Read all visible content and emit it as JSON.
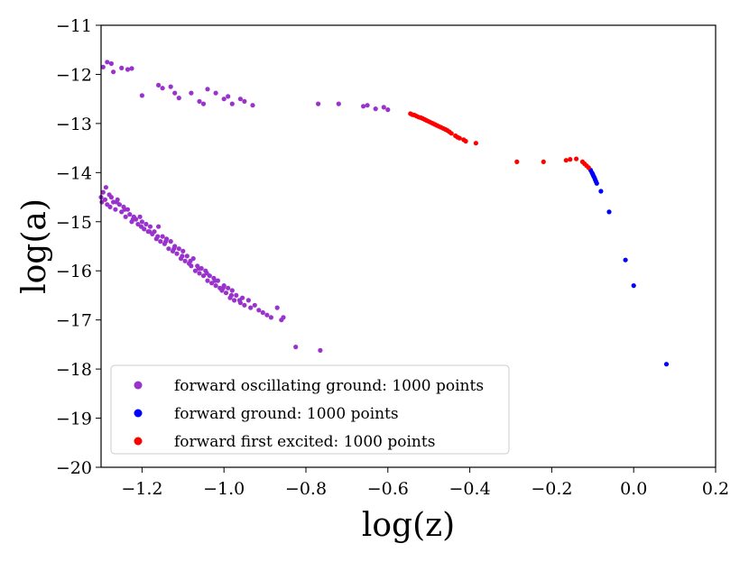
{
  "chart_data": {
    "type": "scatter",
    "xlabel": "log(z)",
    "ylabel": "log(a)",
    "xlim": [
      -1.3,
      0.2
    ],
    "ylim": [
      -20,
      -11
    ],
    "x_ticks": [
      -1.2,
      -1.0,
      -0.8,
      -0.6,
      -0.4,
      -0.2,
      0.0,
      0.2
    ],
    "y_ticks": [
      -20,
      -19,
      -18,
      -17,
      -16,
      -15,
      -14,
      -13,
      -12,
      -11
    ],
    "x_tick_labels": [
      "−1.2",
      "−1.0",
      "−0.8",
      "−0.6",
      "−0.4",
      "−0.2",
      "0.0",
      "0.2"
    ],
    "y_tick_labels": [
      "−20",
      "−19",
      "−18",
      "−17",
      "−16",
      "−15",
      "−14",
      "−13",
      "−12",
      "−11"
    ],
    "grid": false,
    "legend_position": "lower-left",
    "series": [
      {
        "name": "forward oscillating ground: 1000 points",
        "color": "#9933cc",
        "points": [
          [
            -1.295,
            -11.85
          ],
          [
            -1.285,
            -11.75
          ],
          [
            -1.275,
            -11.78
          ],
          [
            -1.27,
            -11.95
          ],
          [
            -1.25,
            -11.87
          ],
          [
            -1.235,
            -11.9
          ],
          [
            -1.225,
            -11.88
          ],
          [
            -1.2,
            -12.43
          ],
          [
            -1.16,
            -12.22
          ],
          [
            -1.15,
            -12.28
          ],
          [
            -1.13,
            -12.25
          ],
          [
            -1.12,
            -12.38
          ],
          [
            -1.11,
            -12.48
          ],
          [
            -1.08,
            -12.38
          ],
          [
            -1.06,
            -12.55
          ],
          [
            -1.05,
            -12.6
          ],
          [
            -1.04,
            -12.3
          ],
          [
            -1.02,
            -12.38
          ],
          [
            -1.0,
            -12.5
          ],
          [
            -0.99,
            -12.45
          ],
          [
            -0.98,
            -12.6
          ],
          [
            -0.96,
            -12.5
          ],
          [
            -0.95,
            -12.55
          ],
          [
            -0.93,
            -12.63
          ],
          [
            -0.77,
            -12.6
          ],
          [
            -0.72,
            -12.6
          ],
          [
            -0.66,
            -12.65
          ],
          [
            -0.65,
            -12.63
          ],
          [
            -0.63,
            -12.7
          ],
          [
            -0.61,
            -12.67
          ],
          [
            -0.6,
            -12.72
          ],
          [
            -1.3,
            -14.5
          ],
          [
            -1.298,
            -14.6
          ],
          [
            -1.295,
            -14.4
          ],
          [
            -1.29,
            -14.55
          ],
          [
            -1.288,
            -14.3
          ],
          [
            -1.285,
            -14.65
          ],
          [
            -1.28,
            -14.45
          ],
          [
            -1.278,
            -14.7
          ],
          [
            -1.275,
            -14.5
          ],
          [
            -1.27,
            -14.6
          ],
          [
            -1.265,
            -14.75
          ],
          [
            -1.26,
            -14.55
          ],
          [
            -1.255,
            -14.65
          ],
          [
            -1.25,
            -14.8
          ],
          [
            -1.245,
            -14.7
          ],
          [
            -1.24,
            -14.9
          ],
          [
            -1.235,
            -14.75
          ],
          [
            -1.23,
            -14.85
          ],
          [
            -1.225,
            -15.0
          ],
          [
            -1.22,
            -14.9
          ],
          [
            -1.215,
            -14.95
          ],
          [
            -1.21,
            -15.05
          ],
          [
            -1.205,
            -14.9
          ],
          [
            -1.2,
            -15.0
          ],
          [
            -1.195,
            -15.15
          ],
          [
            -1.19,
            -15.05
          ],
          [
            -1.185,
            -15.2
          ],
          [
            -1.18,
            -15.1
          ],
          [
            -1.175,
            -15.25
          ],
          [
            -1.17,
            -15.2
          ],
          [
            -1.165,
            -15.35
          ],
          [
            -1.16,
            -15.1
          ],
          [
            -1.155,
            -15.4
          ],
          [
            -1.15,
            -15.3
          ],
          [
            -1.145,
            -15.45
          ],
          [
            -1.14,
            -15.35
          ],
          [
            -1.135,
            -15.55
          ],
          [
            -1.13,
            -15.4
          ],
          [
            -1.125,
            -15.6
          ],
          [
            -1.12,
            -15.5
          ],
          [
            -1.115,
            -15.65
          ],
          [
            -1.11,
            -15.55
          ],
          [
            -1.105,
            -15.75
          ],
          [
            -1.1,
            -15.6
          ],
          [
            -1.095,
            -15.8
          ],
          [
            -1.09,
            -15.7
          ],
          [
            -1.085,
            -15.85
          ],
          [
            -1.08,
            -15.9
          ],
          [
            -1.075,
            -15.75
          ],
          [
            -1.07,
            -16.0
          ],
          [
            -1.065,
            -15.9
          ],
          [
            -1.06,
            -16.05
          ],
          [
            -1.055,
            -15.95
          ],
          [
            -1.05,
            -16.1
          ],
          [
            -1.045,
            -16.0
          ],
          [
            -1.04,
            -16.2
          ],
          [
            -1.035,
            -16.1
          ],
          [
            -1.03,
            -16.25
          ],
          [
            -1.025,
            -16.15
          ],
          [
            -1.02,
            -16.3
          ],
          [
            -1.015,
            -16.2
          ],
          [
            -1.01,
            -16.35
          ],
          [
            -1.005,
            -16.4
          ],
          [
            -1.0,
            -16.3
          ],
          [
            -0.995,
            -16.45
          ],
          [
            -0.99,
            -16.35
          ],
          [
            -0.985,
            -16.55
          ],
          [
            -0.98,
            -16.4
          ],
          [
            -0.975,
            -16.6
          ],
          [
            -0.97,
            -16.5
          ],
          [
            -0.96,
            -16.65
          ],
          [
            -0.955,
            -16.55
          ],
          [
            -0.95,
            -16.7
          ],
          [
            -0.94,
            -16.6
          ],
          [
            -0.935,
            -16.75
          ],
          [
            -0.925,
            -16.7
          ],
          [
            -0.915,
            -16.8
          ],
          [
            -0.905,
            -16.85
          ],
          [
            -0.895,
            -16.9
          ],
          [
            -0.885,
            -16.95
          ],
          [
            -0.87,
            -16.75
          ],
          [
            -0.86,
            -17.0
          ],
          [
            -0.855,
            -16.95
          ],
          [
            -0.825,
            -17.55
          ],
          [
            -0.765,
            -17.62
          ],
          [
            -1.262,
            -14.6
          ],
          [
            -1.242,
            -14.75
          ],
          [
            -1.222,
            -14.95
          ],
          [
            -1.202,
            -15.1
          ],
          [
            -1.182,
            -15.2
          ],
          [
            -1.162,
            -15.3
          ],
          [
            -1.142,
            -15.4
          ],
          [
            -1.122,
            -15.55
          ],
          [
            -1.102,
            -15.7
          ],
          [
            -1.082,
            -15.8
          ],
          [
            -1.062,
            -15.95
          ],
          [
            -1.042,
            -16.05
          ],
          [
            -1.022,
            -16.2
          ],
          [
            -1.002,
            -16.35
          ],
          [
            -0.982,
            -16.5
          ],
          [
            -0.962,
            -16.6
          ]
        ]
      },
      {
        "name": "forward ground: 1000 points",
        "color": "#0000ff",
        "points": [
          [
            -0.105,
            -13.95
          ],
          [
            -0.102,
            -14.0
          ],
          [
            -0.1,
            -14.03
          ],
          [
            -0.098,
            -14.07
          ],
          [
            -0.096,
            -14.1
          ],
          [
            -0.094,
            -14.14
          ],
          [
            -0.092,
            -14.18
          ],
          [
            -0.09,
            -14.22
          ],
          [
            -0.08,
            -14.38
          ],
          [
            -0.06,
            -14.8
          ],
          [
            -0.02,
            -15.78
          ],
          [
            0.0,
            -16.3
          ],
          [
            0.08,
            -17.9
          ]
        ]
      },
      {
        "name": "forward first excited: 1000 points",
        "color": "#ff0000",
        "points": [
          [
            -0.545,
            -12.8
          ],
          [
            -0.54,
            -12.82
          ],
          [
            -0.535,
            -12.83
          ],
          [
            -0.53,
            -12.85
          ],
          [
            -0.525,
            -12.87
          ],
          [
            -0.52,
            -12.88
          ],
          [
            -0.515,
            -12.9
          ],
          [
            -0.51,
            -12.92
          ],
          [
            -0.505,
            -12.94
          ],
          [
            -0.5,
            -12.96
          ],
          [
            -0.495,
            -12.98
          ],
          [
            -0.49,
            -13.0
          ],
          [
            -0.485,
            -13.02
          ],
          [
            -0.48,
            -13.04
          ],
          [
            -0.475,
            -13.06
          ],
          [
            -0.47,
            -13.08
          ],
          [
            -0.465,
            -13.1
          ],
          [
            -0.46,
            -13.12
          ],
          [
            -0.455,
            -13.14
          ],
          [
            -0.45,
            -13.17
          ],
          [
            -0.445,
            -13.2
          ],
          [
            -0.435,
            -13.25
          ],
          [
            -0.43,
            -13.28
          ],
          [
            -0.425,
            -13.3
          ],
          [
            -0.415,
            -13.33
          ],
          [
            -0.41,
            -13.36
          ],
          [
            -0.385,
            -13.4
          ],
          [
            -0.285,
            -13.78
          ],
          [
            -0.22,
            -13.78
          ],
          [
            -0.165,
            -13.75
          ],
          [
            -0.155,
            -13.73
          ],
          [
            -0.14,
            -13.72
          ],
          [
            -0.125,
            -13.78
          ],
          [
            -0.12,
            -13.82
          ],
          [
            -0.115,
            -13.86
          ],
          [
            -0.11,
            -13.9
          ]
        ]
      }
    ]
  }
}
